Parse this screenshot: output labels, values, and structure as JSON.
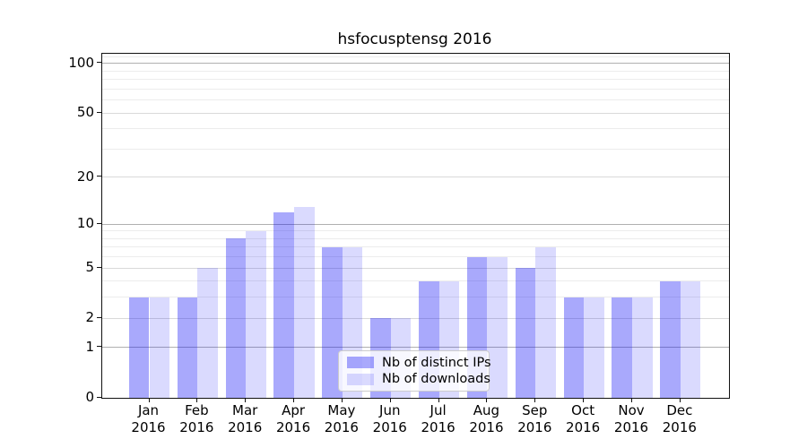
{
  "chart_data": {
    "type": "bar",
    "title": "hsfocusptensg 2016",
    "categories": [
      "Jan",
      "Feb",
      "Mar",
      "Apr",
      "May",
      "Jun",
      "Jul",
      "Aug",
      "Sep",
      "Oct",
      "Nov",
      "Dec"
    ],
    "year": "2016",
    "series": [
      {
        "name": "Nb of distinct IPs",
        "color": "rgba(10,10,245,0.35)",
        "values": [
          3,
          3,
          8,
          12,
          7,
          2,
          4,
          6,
          5,
          3,
          3,
          4
        ]
      },
      {
        "name": "Nb of downloads",
        "color": "rgba(10,10,245,0.15)",
        "values": [
          3,
          5,
          9,
          13,
          7,
          2,
          4,
          6,
          7,
          3,
          3,
          4
        ]
      }
    ],
    "xlabel": "",
    "ylabel": "",
    "yscale": "log1p",
    "ylim": [
      0,
      114.6
    ],
    "yticks_labeled": [
      0,
      1,
      2,
      5,
      10,
      20,
      50,
      100
    ],
    "grid": {
      "strong": [
        1,
        10,
        100
      ],
      "medium": [
        2,
        5,
        20,
        50
      ],
      "faint": [
        3,
        4,
        6,
        7,
        8,
        9,
        30,
        40,
        60,
        70,
        80,
        90,
        110
      ]
    },
    "legend_position": "lower center-right"
  }
}
